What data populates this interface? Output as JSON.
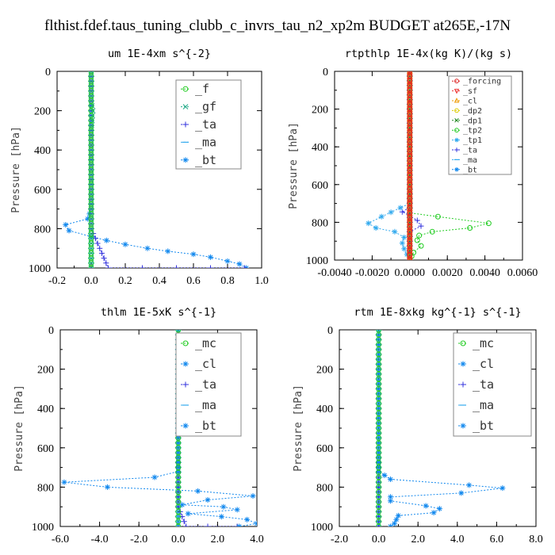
{
  "figure_title": "flthist.fdef.taus_tuning_clubb_c_invrs_tau_n2_xp2m  BUDGET at265E,-17N",
  "chart_data": [
    {
      "type": "line",
      "title": "um  1E-4xm s^{-2}",
      "ylabel": "Pressure [hPa]",
      "xlim": [
        -0.2,
        1.0
      ],
      "ylim": [
        1000,
        0
      ],
      "xticks": [
        "-0.2",
        "0.0",
        "0.2",
        "0.4",
        "0.6",
        "0.8",
        "1.0"
      ],
      "yticks": [
        "0",
        "200",
        "400",
        "600",
        "800",
        "1000"
      ],
      "legend_position": "top-right",
      "legend_style": "large",
      "series": [
        {
          "name": "_f",
          "color": "#22cc22",
          "marker": "circle",
          "data": [
            [
              0,
              0
            ],
            [
              0,
              100
            ],
            [
              0,
              200
            ],
            [
              0,
              300
            ],
            [
              0,
              400
            ],
            [
              0,
              500
            ],
            [
              0,
              600
            ],
            [
              0,
              700
            ],
            [
              0,
              800
            ],
            [
              0,
              900
            ],
            [
              0,
              1000
            ]
          ]
        },
        {
          "name": "_gf",
          "color": "#22aa88",
          "marker": "x",
          "data": [
            [
              0,
              0
            ],
            [
              0,
              150
            ],
            [
              0.01,
              200
            ],
            [
              0,
              300
            ],
            [
              0,
              500
            ],
            [
              0,
              700
            ],
            [
              0,
              800
            ],
            [
              0,
              900
            ],
            [
              0,
              1000
            ]
          ]
        },
        {
          "name": "_ta",
          "color": "#3333dd",
          "marker": "plus",
          "data": [
            [
              0,
              0
            ],
            [
              0,
              500
            ],
            [
              0,
              800
            ],
            [
              0.1,
              1000
            ],
            [
              0.3,
              1000
            ],
            [
              0.5,
              1000
            ],
            [
              0.7,
              1000
            ],
            [
              0.9,
              1000
            ]
          ]
        },
        {
          "name": "_ma",
          "color": "#33aaee",
          "marker": "dash",
          "data": [
            [
              0,
              0
            ],
            [
              0,
              500
            ],
            [
              0,
              1000
            ]
          ]
        },
        {
          "name": "_bt",
          "color": "#1188ee",
          "marker": "star",
          "data": [
            [
              0,
              0
            ],
            [
              0,
              300
            ],
            [
              0,
              600
            ],
            [
              0,
              700
            ],
            [
              -0.02,
              750
            ],
            [
              -0.15,
              780
            ],
            [
              -0.13,
              810
            ],
            [
              0.0,
              840
            ],
            [
              0.09,
              860
            ],
            [
              0.2,
              880
            ],
            [
              0.33,
              900
            ],
            [
              0.45,
              915
            ],
            [
              0.6,
              930
            ],
            [
              0.7,
              945
            ],
            [
              0.8,
              965
            ],
            [
              0.87,
              980
            ],
            [
              0.91,
              1000
            ]
          ]
        }
      ]
    },
    {
      "type": "line",
      "title": "rtpthlp  1E-4x(kg K)/(kg s)",
      "ylabel": "Pressure [hPa]",
      "xlim": [
        -0.004,
        0.006
      ],
      "ylim": [
        1000,
        0
      ],
      "xticks": [
        "-0.0040",
        "-0.0020",
        "0.0000",
        "0.0020",
        "0.0040",
        "0.0060"
      ],
      "yticks": [
        "0",
        "200",
        "400",
        "600",
        "800",
        "1000"
      ],
      "legend_position": "top-right",
      "legend_style": "small",
      "series": [
        {
          "name": "_forcing",
          "color": "#dd2222",
          "marker": "circle",
          "data": [
            [
              0,
              0
            ],
            [
              0,
              200
            ],
            [
              0,
              400
            ],
            [
              0,
              600
            ],
            [
              0,
              800
            ],
            [
              0,
              1000
            ]
          ]
        },
        {
          "name": "_sf",
          "color": "#ee3333",
          "marker": "triangle-down",
          "data": [
            [
              0,
              0
            ],
            [
              0,
              500
            ],
            [
              0,
              1000
            ]
          ]
        },
        {
          "name": "_cl",
          "color": "#ee9900",
          "marker": "triangle",
          "data": [
            [
              0,
              0
            ],
            [
              0,
              500
            ],
            [
              0,
              1000
            ]
          ]
        },
        {
          "name": "_dp2",
          "color": "#ddcc00",
          "marker": "circle",
          "data": [
            [
              0,
              0
            ],
            [
              0,
              500
            ],
            [
              0,
              1000
            ]
          ]
        },
        {
          "name": "_dp1",
          "color": "#228822",
          "marker": "x",
          "data": [
            [
              0,
              0
            ],
            [
              0,
              500
            ],
            [
              0,
              1000
            ]
          ]
        },
        {
          "name": "_tp2",
          "color": "#22cc22",
          "marker": "circle",
          "data": [
            [
              0,
              0
            ],
            [
              0,
              700
            ],
            [
              0,
              750
            ],
            [
              0.0015,
              770
            ],
            [
              0.0042,
              805
            ],
            [
              0.0032,
              830
            ],
            [
              0.0012,
              850
            ],
            [
              0.0005,
              870
            ],
            [
              0.0004,
              895
            ],
            [
              0.0006,
              925
            ],
            [
              0.0002,
              960
            ],
            [
              0,
              1000
            ]
          ]
        },
        {
          "name": "_tp1",
          "color": "#33aaee",
          "marker": "star",
          "data": [
            [
              0,
              0
            ],
            [
              0,
              700
            ],
            [
              -0.0015,
              770
            ],
            [
              -0.0022,
              805
            ],
            [
              -0.0018,
              830
            ],
            [
              -0.0008,
              850
            ],
            [
              -0.0003,
              880
            ],
            [
              -0.0004,
              910
            ],
            [
              -0.0003,
              940
            ],
            [
              0,
              1000
            ]
          ]
        },
        {
          "name": "_ta",
          "color": "#3333dd",
          "marker": "plus",
          "data": [
            [
              0,
              0
            ],
            [
              0,
              720
            ],
            [
              -0.0004,
              745
            ],
            [
              0,
              765
            ],
            [
              0.0004,
              790
            ],
            [
              0.0006,
              820
            ],
            [
              0,
              850
            ],
            [
              0,
              1000
            ]
          ]
        },
        {
          "name": "_ma",
          "color": "#33aaee",
          "marker": "dash",
          "data": [
            [
              0,
              0
            ],
            [
              0,
              500
            ],
            [
              0,
              1000
            ]
          ]
        },
        {
          "name": "_bt",
          "color": "#1188ee",
          "marker": "star",
          "data": [
            [
              0,
              0
            ],
            [
              0,
              500
            ],
            [
              0,
              1000
            ]
          ]
        }
      ]
    },
    {
      "type": "line",
      "title": "thlm  1E-5xK s^{-1}",
      "ylabel": "Pressure [hPa]",
      "xlim": [
        -6.0,
        4.0
      ],
      "ylim": [
        1000,
        0
      ],
      "xticks": [
        "-6.0",
        "-4.0",
        "-2.0",
        "0.0",
        "2.0",
        "4.0"
      ],
      "yticks": [
        "0",
        "200",
        "400",
        "600",
        "800",
        "1000"
      ],
      "legend_position": "top-right",
      "legend_style": "large",
      "series": [
        {
          "name": "_mc",
          "color": "#22cc22",
          "marker": "circle",
          "data": [
            [
              0,
              0
            ],
            [
              0,
              100
            ],
            [
              0,
              200
            ],
            [
              0,
              300
            ],
            [
              0,
              400
            ],
            [
              0,
              500
            ],
            [
              0,
              600
            ],
            [
              0,
              700
            ],
            [
              0,
              800
            ],
            [
              0,
              900
            ],
            [
              0,
              1000
            ]
          ]
        },
        {
          "name": "_cl",
          "color": "#1188ee",
          "marker": "star",
          "data": [
            [
              0,
              0
            ],
            [
              0,
              600
            ],
            [
              0,
              720
            ],
            [
              -1.2,
              750
            ],
            [
              -5.8,
              775
            ],
            [
              -3.6,
              800
            ],
            [
              1.0,
              820
            ],
            [
              3.8,
              845
            ],
            [
              1.5,
              865
            ],
            [
              0.2,
              890
            ],
            [
              2.3,
              900
            ],
            [
              3.0,
              915
            ],
            [
              0.5,
              935
            ],
            [
              2.2,
              950
            ],
            [
              3.5,
              965
            ],
            [
              4.0,
              985
            ],
            [
              3.1,
              1000
            ]
          ]
        },
        {
          "name": "_ta",
          "color": "#3333dd",
          "marker": "plus",
          "data": [
            [
              0,
              0
            ],
            [
              0,
              900
            ],
            [
              0.4,
              1000
            ],
            [
              1.5,
              1000
            ],
            [
              3.0,
              1000
            ]
          ]
        },
        {
          "name": "_ma",
          "color": "#33aaee",
          "marker": "dash",
          "data": [
            [
              0,
              0
            ],
            [
              0,
              500
            ],
            [
              0,
              1000
            ]
          ]
        },
        {
          "name": "_bt",
          "color": "#1188ee",
          "marker": "star",
          "data": [
            [
              0,
              0
            ],
            [
              0,
              500
            ],
            [
              0,
              1000
            ]
          ]
        }
      ]
    },
    {
      "type": "line",
      "title": "rtm  1E-8xkg kg^{-1} s^{-1}",
      "ylabel": "Pressure [hPa]",
      "xlim": [
        -2.0,
        8.0
      ],
      "ylim": [
        1000,
        0
      ],
      "xticks": [
        "-2.0",
        "0.0",
        "2.0",
        "4.0",
        "6.0",
        "8.0"
      ],
      "yticks": [
        "0",
        "200",
        "400",
        "600",
        "800",
        "1000"
      ],
      "legend_position": "top-right",
      "legend_style": "large",
      "series": [
        {
          "name": "_mc",
          "color": "#22cc22",
          "marker": "circle",
          "data": [
            [
              0,
              0
            ],
            [
              0,
              100
            ],
            [
              0,
              200
            ],
            [
              0,
              300
            ],
            [
              0,
              400
            ],
            [
              0,
              500
            ],
            [
              0,
              600
            ],
            [
              0,
              700
            ],
            [
              0,
              800
            ],
            [
              0,
              900
            ],
            [
              0,
              1000
            ]
          ]
        },
        {
          "name": "_cl",
          "color": "#1188ee",
          "marker": "star",
          "data": [
            [
              0,
              0
            ],
            [
              0,
              600
            ],
            [
              0,
              720
            ],
            [
              0.6,
              760
            ],
            [
              4.6,
              790
            ],
            [
              6.3,
              805
            ],
            [
              4.2,
              830
            ],
            [
              0.6,
              850
            ],
            [
              0.6,
              870
            ],
            [
              2.4,
              895
            ],
            [
              3.1,
              910
            ],
            [
              2.8,
              930
            ],
            [
              1.0,
              945
            ],
            [
              0.9,
              965
            ],
            [
              0.8,
              985
            ],
            [
              0.6,
              1000
            ]
          ]
        },
        {
          "name": "_ta",
          "color": "#3333dd",
          "marker": "plus",
          "data": [
            [
              0,
              0
            ],
            [
              0,
              500
            ],
            [
              0,
              1000
            ]
          ]
        },
        {
          "name": "_ma",
          "color": "#33aaee",
          "marker": "dash",
          "data": [
            [
              0,
              0
            ],
            [
              0,
              500
            ],
            [
              0,
              1000
            ]
          ]
        },
        {
          "name": "_bt",
          "color": "#1188ee",
          "marker": "star",
          "data": [
            [
              0,
              0
            ],
            [
              0,
              500
            ],
            [
              0,
              1000
            ]
          ]
        }
      ]
    }
  ]
}
